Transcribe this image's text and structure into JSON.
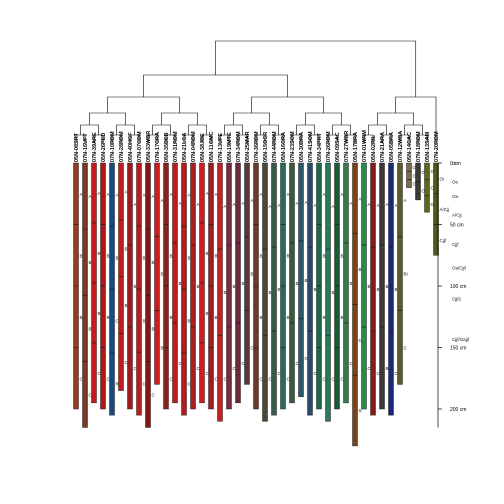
{
  "chart_data": {
    "type": "soil-profile-dendrogram",
    "title": "",
    "xlabel": "",
    "ylabel": "",
    "depth_axis": {
      "unit": "cm",
      "range": [
        0,
        250
      ],
      "ticks": [
        {
          "value": 0,
          "label": "0 cm"
        },
        {
          "value": 50,
          "label": "50 cm"
        },
        {
          "value": 100,
          "label": "100 cm"
        },
        {
          "value": 150,
          "label": "150 cm"
        },
        {
          "value": 200,
          "label": "200 cm"
        }
      ]
    },
    "profiles": [
      {
        "id": "05N-08SRT",
        "depth": 200,
        "color": "#9a3a1c",
        "horizons": [
          "Ap",
          "Bt",
          "Bt",
          "C"
        ]
      },
      {
        "id": "07N-16UFT",
        "depth": 215,
        "color": "#7a3a22",
        "horizons": [
          "A",
          "Bt",
          "Bt2",
          "C"
        ]
      },
      {
        "id": "07N-39ARE",
        "depth": 195,
        "color": "#c81a1a",
        "horizons": [
          "A",
          "Bt1",
          "Bt2",
          "C"
        ]
      },
      {
        "id": "05N-26PED",
        "depth": 200,
        "color": "#b01818",
        "horizons": [
          "A",
          "Bt",
          "BC",
          "C"
        ]
      },
      {
        "id": "07N-10RDM",
        "depth": 205,
        "color": "#1a4a7a",
        "horizons": [
          "A",
          "Bt",
          "C",
          "R"
        ]
      },
      {
        "id": "07N-28RDM",
        "depth": 185,
        "color": "#c41c1c",
        "horizons": [
          "A",
          "Bt",
          "Bt2",
          "C"
        ]
      },
      {
        "id": "05N-40HGF",
        "depth": 200,
        "color": "#a01a1a",
        "horizons": [
          "Ap",
          "Bt",
          "C"
        ]
      },
      {
        "id": "07N-07CDM",
        "depth": 205,
        "color": "#c01a1a",
        "horizons": [
          "A",
          "Bt1",
          "Bt2",
          "C"
        ]
      },
      {
        "id": "05N-33WBR",
        "depth": 215,
        "color": "#801818",
        "horizons": [
          "A",
          "B",
          "Bt",
          "C"
        ]
      },
      {
        "id": "07N-17CRA",
        "depth": 180,
        "color": "#cc1c1c",
        "horizons": [
          "A",
          "Bt",
          "BC"
        ]
      },
      {
        "id": "05N-35DEB",
        "depth": 200,
        "color": "#8a2218",
        "horizons": [
          "A",
          "B",
          "Bt",
          "C"
        ]
      },
      {
        "id": "07N-31RDM",
        "depth": 195,
        "color": "#c21a1a",
        "horizons": [
          "A",
          "Bt",
          "C"
        ]
      },
      {
        "id": "05N-21LCA",
        "depth": 205,
        "color": "#b21c1c",
        "horizons": [
          "Ap",
          "Bt",
          "Bt2",
          "C"
        ]
      },
      {
        "id": "07N-04RDM",
        "depth": 200,
        "color": "#a82020",
        "horizons": [
          "A",
          "Bt",
          "C"
        ]
      },
      {
        "id": "05N-38JBE",
        "depth": 195,
        "color": "#d01c1c",
        "horizons": [
          "A",
          "Bt1",
          "Bt2",
          "C"
        ]
      },
      {
        "id": "05N-11GMC",
        "depth": 200,
        "color": "#9e1e1e",
        "horizons": [
          "A",
          "Bt",
          "BC",
          "C"
        ]
      },
      {
        "id": "07N-13UFE",
        "depth": 210,
        "color": "#c62020",
        "horizons": [
          "A",
          "Bt",
          "C"
        ]
      },
      {
        "id": "05N-19MTE",
        "depth": 200,
        "color": "#7a2a40",
        "horizons": [
          "A",
          "Bt",
          "C"
        ]
      },
      {
        "id": "07N-34RDM",
        "depth": 195,
        "color": "#6a2a3a",
        "horizons": [
          "A",
          "Bk2",
          "C"
        ]
      },
      {
        "id": "05N-25MAR",
        "depth": 180,
        "color": "#5a3838",
        "horizons": [
          "A",
          "Bt",
          "C"
        ]
      },
      {
        "id": "07N-36RDM",
        "depth": 200,
        "color": "#6b3a2a",
        "horizons": [
          "A",
          "Bt",
          "BC",
          "C"
        ]
      },
      {
        "id": "05N-15OCR",
        "depth": 210,
        "color": "#4a4a3a",
        "horizons": [
          "A",
          "Bw",
          "C"
        ]
      },
      {
        "id": "07N-44RDM",
        "depth": 205,
        "color": "#3a5a4a",
        "horizons": [
          "A",
          "Bt",
          "C"
        ]
      },
      {
        "id": "05N-16CRA",
        "depth": 200,
        "color": "#2a6a5a",
        "horizons": [
          "A",
          "Bt",
          "Bt2",
          "C"
        ]
      },
      {
        "id": "07N-23SOM",
        "depth": 195,
        "color": "#3a5a3a",
        "horizons": [
          "A",
          "Bt",
          "C"
        ]
      },
      {
        "id": "05N-30DRA",
        "depth": 190,
        "color": "#2a5a6a",
        "horizons": [
          "A",
          "Bw",
          "C"
        ]
      },
      {
        "id": "07N-41SOM",
        "depth": 205,
        "color": "#2a4a6a",
        "horizons": [
          "A",
          "Bt",
          "C"
        ]
      },
      {
        "id": "05N-34PRT",
        "depth": 200,
        "color": "#1a6a4a",
        "horizons": [
          "A",
          "Bt1",
          "Bt2",
          "C"
        ]
      },
      {
        "id": "07N-26RDM",
        "depth": 210,
        "color": "#2a7a5a",
        "horizons": [
          "A",
          "Bt",
          "C"
        ]
      },
      {
        "id": "05N-09SAC",
        "depth": 200,
        "color": "#1a5a3a",
        "horizons": [
          "A",
          "Bt",
          "BC",
          "C"
        ]
      },
      {
        "id": "07N-27WBR",
        "depth": 195,
        "color": "#3a7a4a",
        "horizons": [
          "A",
          "Bt",
          "C"
        ]
      },
      {
        "id": "05N-17BRA",
        "depth": 230,
        "color": "#7a4418",
        "horizons": [
          "A",
          "Bt",
          "C",
          "R"
        ]
      },
      {
        "id": "07N-01WRM",
        "depth": 200,
        "color": "#2a8a4a",
        "horizons": [
          "A",
          "Bt",
          "C"
        ]
      },
      {
        "id": "05N-02RIL",
        "depth": 205,
        "color": "#8a1a1a",
        "horizons": [
          "A",
          "Bt",
          "C"
        ]
      },
      {
        "id": "07N-21ARA",
        "depth": 200,
        "color": "#3a3a3a",
        "horizons": [
          "A",
          "Bt",
          "Bk3"
        ]
      },
      {
        "id": "05N-05BRA",
        "depth": 205,
        "color": "#1a2a7a",
        "horizons": [
          "A",
          "Bt",
          "C"
        ]
      },
      {
        "id": "07N-12WBA",
        "depth": 180,
        "color": "#5a5a2a",
        "horizons": [
          "A",
          "Bt",
          "C"
        ]
      },
      {
        "id": "05N-14CAC",
        "depth": 20,
        "color": "#7a6a4a",
        "horizons": [
          "Oi",
          "Oe",
          "Oa"
        ]
      },
      {
        "id": "07N-18RDM",
        "depth": 30,
        "color": "#3a3a3a",
        "horizons": [
          "Oi",
          "Oe"
        ]
      },
      {
        "id": "05N-13SAM",
        "depth": 40,
        "color": "#5a6a1a",
        "horizons": [
          "Oi",
          "Oe",
          "Oa"
        ]
      },
      {
        "id": "07N-20RDM",
        "depth": 75,
        "color": "#4a5a1a",
        "horizons": [
          "Oi",
          "A/Cjj",
          "Cjjf"
        ]
      }
    ],
    "right_annotations": [
      "Oi",
      "Oe",
      "Oa",
      "A/Cjj",
      "Cjjf",
      "Oa/Cjjf",
      "Cjjf2",
      "Cjjf/Oajjf"
    ]
  }
}
